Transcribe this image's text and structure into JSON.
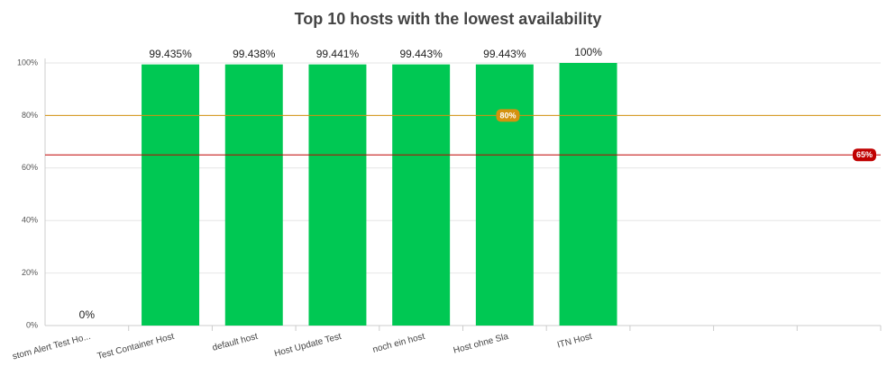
{
  "chart_data": {
    "type": "bar",
    "title": "Top 10 hosts with the lowest availability",
    "categories": [
      "stom Alert Test Ho...",
      "Test Container Host",
      "default host",
      "Host Update Test",
      "noch ein host",
      "Host ohne Sla",
      "ITN Host",
      null,
      null,
      null
    ],
    "values": [
      0,
      99.435,
      99.438,
      99.441,
      99.443,
      99.443,
      100,
      null,
      null,
      null
    ],
    "value_labels": [
      "0%",
      "99.435%",
      "99.438%",
      "99.441%",
      "99.443%",
      "99.443%",
      "100%",
      null,
      null,
      null
    ],
    "color": "#00c853",
    "ylim": [
      0,
      100
    ],
    "yticks": [
      {
        "value": 0,
        "label": "0%"
      },
      {
        "value": 20,
        "label": "20%"
      },
      {
        "value": 40,
        "label": "40%"
      },
      {
        "value": 60,
        "label": "60%"
      },
      {
        "value": 80,
        "label": "80%"
      },
      {
        "value": 100,
        "label": "100%"
      }
    ],
    "grid": true,
    "thresholds": [
      {
        "value": 80,
        "label": "80%",
        "color": "#d4920f"
      },
      {
        "value": 65,
        "label": "65%",
        "color": "#c00000"
      }
    ]
  }
}
